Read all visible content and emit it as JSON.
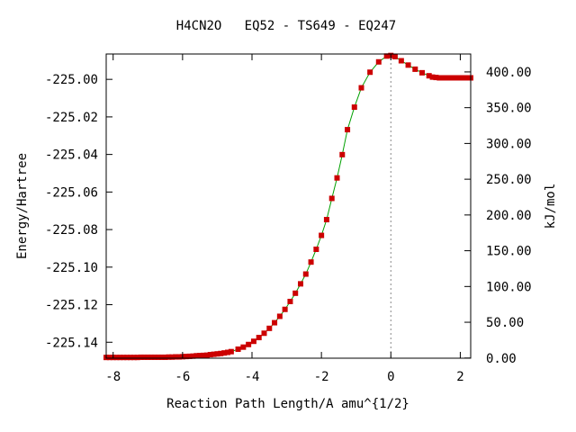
{
  "chart_data": {
    "type": "line",
    "title": "H4CN2O   EQ52 - TS649 - EQ247",
    "xlabel": "Reaction Path Length/A amu^{1/2}",
    "ylabel_left": "Energy/Hartree",
    "ylabel_right": "kJ/mol",
    "xlim": [
      -8.2,
      2.3
    ],
    "ylim": [
      -225.1485,
      -224.9865
    ],
    "x_ticks": [
      -8,
      -6,
      -4,
      -2,
      0,
      2
    ],
    "x_tick_labels": [
      "-8",
      "-6",
      "-4",
      "-2",
      "0",
      "2"
    ],
    "y_left_ticks": [
      -225.0,
      -225.02,
      -225.04,
      -225.06,
      -225.08,
      -225.1,
      -225.12,
      -225.14
    ],
    "y_left_tick_labels": [
      "-225.00",
      "-225.02",
      "-225.04",
      "-225.06",
      "-225.08",
      "-225.10",
      "-225.12",
      "-225.14"
    ],
    "y_right_ticks": [
      0,
      50,
      100,
      150,
      200,
      250,
      300,
      350,
      400
    ],
    "y_right_tick_labels": [
      "0.00",
      "50.00",
      "100.00",
      "150.00",
      "200.00",
      "250.00",
      "300.00",
      "350.00",
      "400.00"
    ],
    "y_right_zero": -225.1484,
    "hartree_to_kj": 2625.5,
    "ts_marker_x": 0,
    "grid": false,
    "colors": {
      "line": "#00a000",
      "marker": "#cc0000",
      "ts_line": "#888888"
    },
    "series": [
      {
        "x": [
          -8.2,
          -8.1,
          -8.0,
          -7.9,
          -7.8,
          -7.7,
          -7.6,
          -7.5,
          -7.4,
          -7.3,
          -7.2,
          -7.1,
          -7.0,
          -6.9,
          -6.8,
          -6.7,
          -6.6,
          -6.5,
          -6.4,
          -6.3,
          -6.2,
          -6.1,
          -6.0,
          -5.9,
          -5.8,
          -5.7,
          -5.6,
          -5.5,
          -5.4,
          -5.3,
          -5.2,
          -5.1,
          -5.0,
          -4.9,
          -4.8,
          -4.7,
          -4.6,
          -4.4,
          -4.25,
          -4.1,
          -3.95,
          -3.8,
          -3.65,
          -3.5,
          -3.35,
          -3.2,
          -3.05,
          -2.9,
          -2.75,
          -2.6,
          -2.45,
          -2.3,
          -2.15,
          -2.0,
          -1.85,
          -1.7,
          -1.55,
          -1.4,
          -1.25,
          -1.05,
          -0.85,
          -0.6,
          -0.35,
          -0.12,
          0.0,
          0.12,
          0.3,
          0.5,
          0.7,
          0.9,
          1.1,
          1.2,
          1.3,
          1.4,
          1.5,
          1.6,
          1.7,
          1.8,
          1.9,
          2.0,
          2.1,
          2.2,
          2.3
        ],
        "y": [
          -225.1481,
          -225.1481,
          -225.1481,
          -225.1481,
          -225.1481,
          -225.1481,
          -225.1481,
          -225.1481,
          -225.1481,
          -225.1481,
          -225.148,
          -225.148,
          -225.148,
          -225.148,
          -225.148,
          -225.148,
          -225.148,
          -225.148,
          -225.1479,
          -225.1479,
          -225.1478,
          -225.1478,
          -225.1477,
          -225.1476,
          -225.1475,
          -225.1474,
          -225.1472,
          -225.1471,
          -225.147,
          -225.1469,
          -225.1466,
          -225.1464,
          -225.1462,
          -225.146,
          -225.1457,
          -225.1454,
          -225.145,
          -225.1437,
          -225.1426,
          -225.1412,
          -225.1395,
          -225.1375,
          -225.1352,
          -225.1326,
          -225.1296,
          -225.1262,
          -225.1225,
          -225.1183,
          -225.1139,
          -225.1089,
          -225.1037,
          -225.0973,
          -225.0905,
          -225.0831,
          -225.0747,
          -225.0634,
          -225.0525,
          -225.0401,
          -225.0268,
          -225.0148,
          -225.0045,
          -224.9962,
          -224.9907,
          -224.9876,
          -224.9873,
          -224.9879,
          -224.9901,
          -224.9924,
          -224.9946,
          -224.9965,
          -224.9981,
          -224.9988,
          -224.999,
          -224.9992,
          -224.9992,
          -224.9992,
          -224.9992,
          -224.9992,
          -224.9992,
          -224.9992,
          -224.9992,
          -224.9992,
          -224.9992
        ]
      }
    ]
  }
}
